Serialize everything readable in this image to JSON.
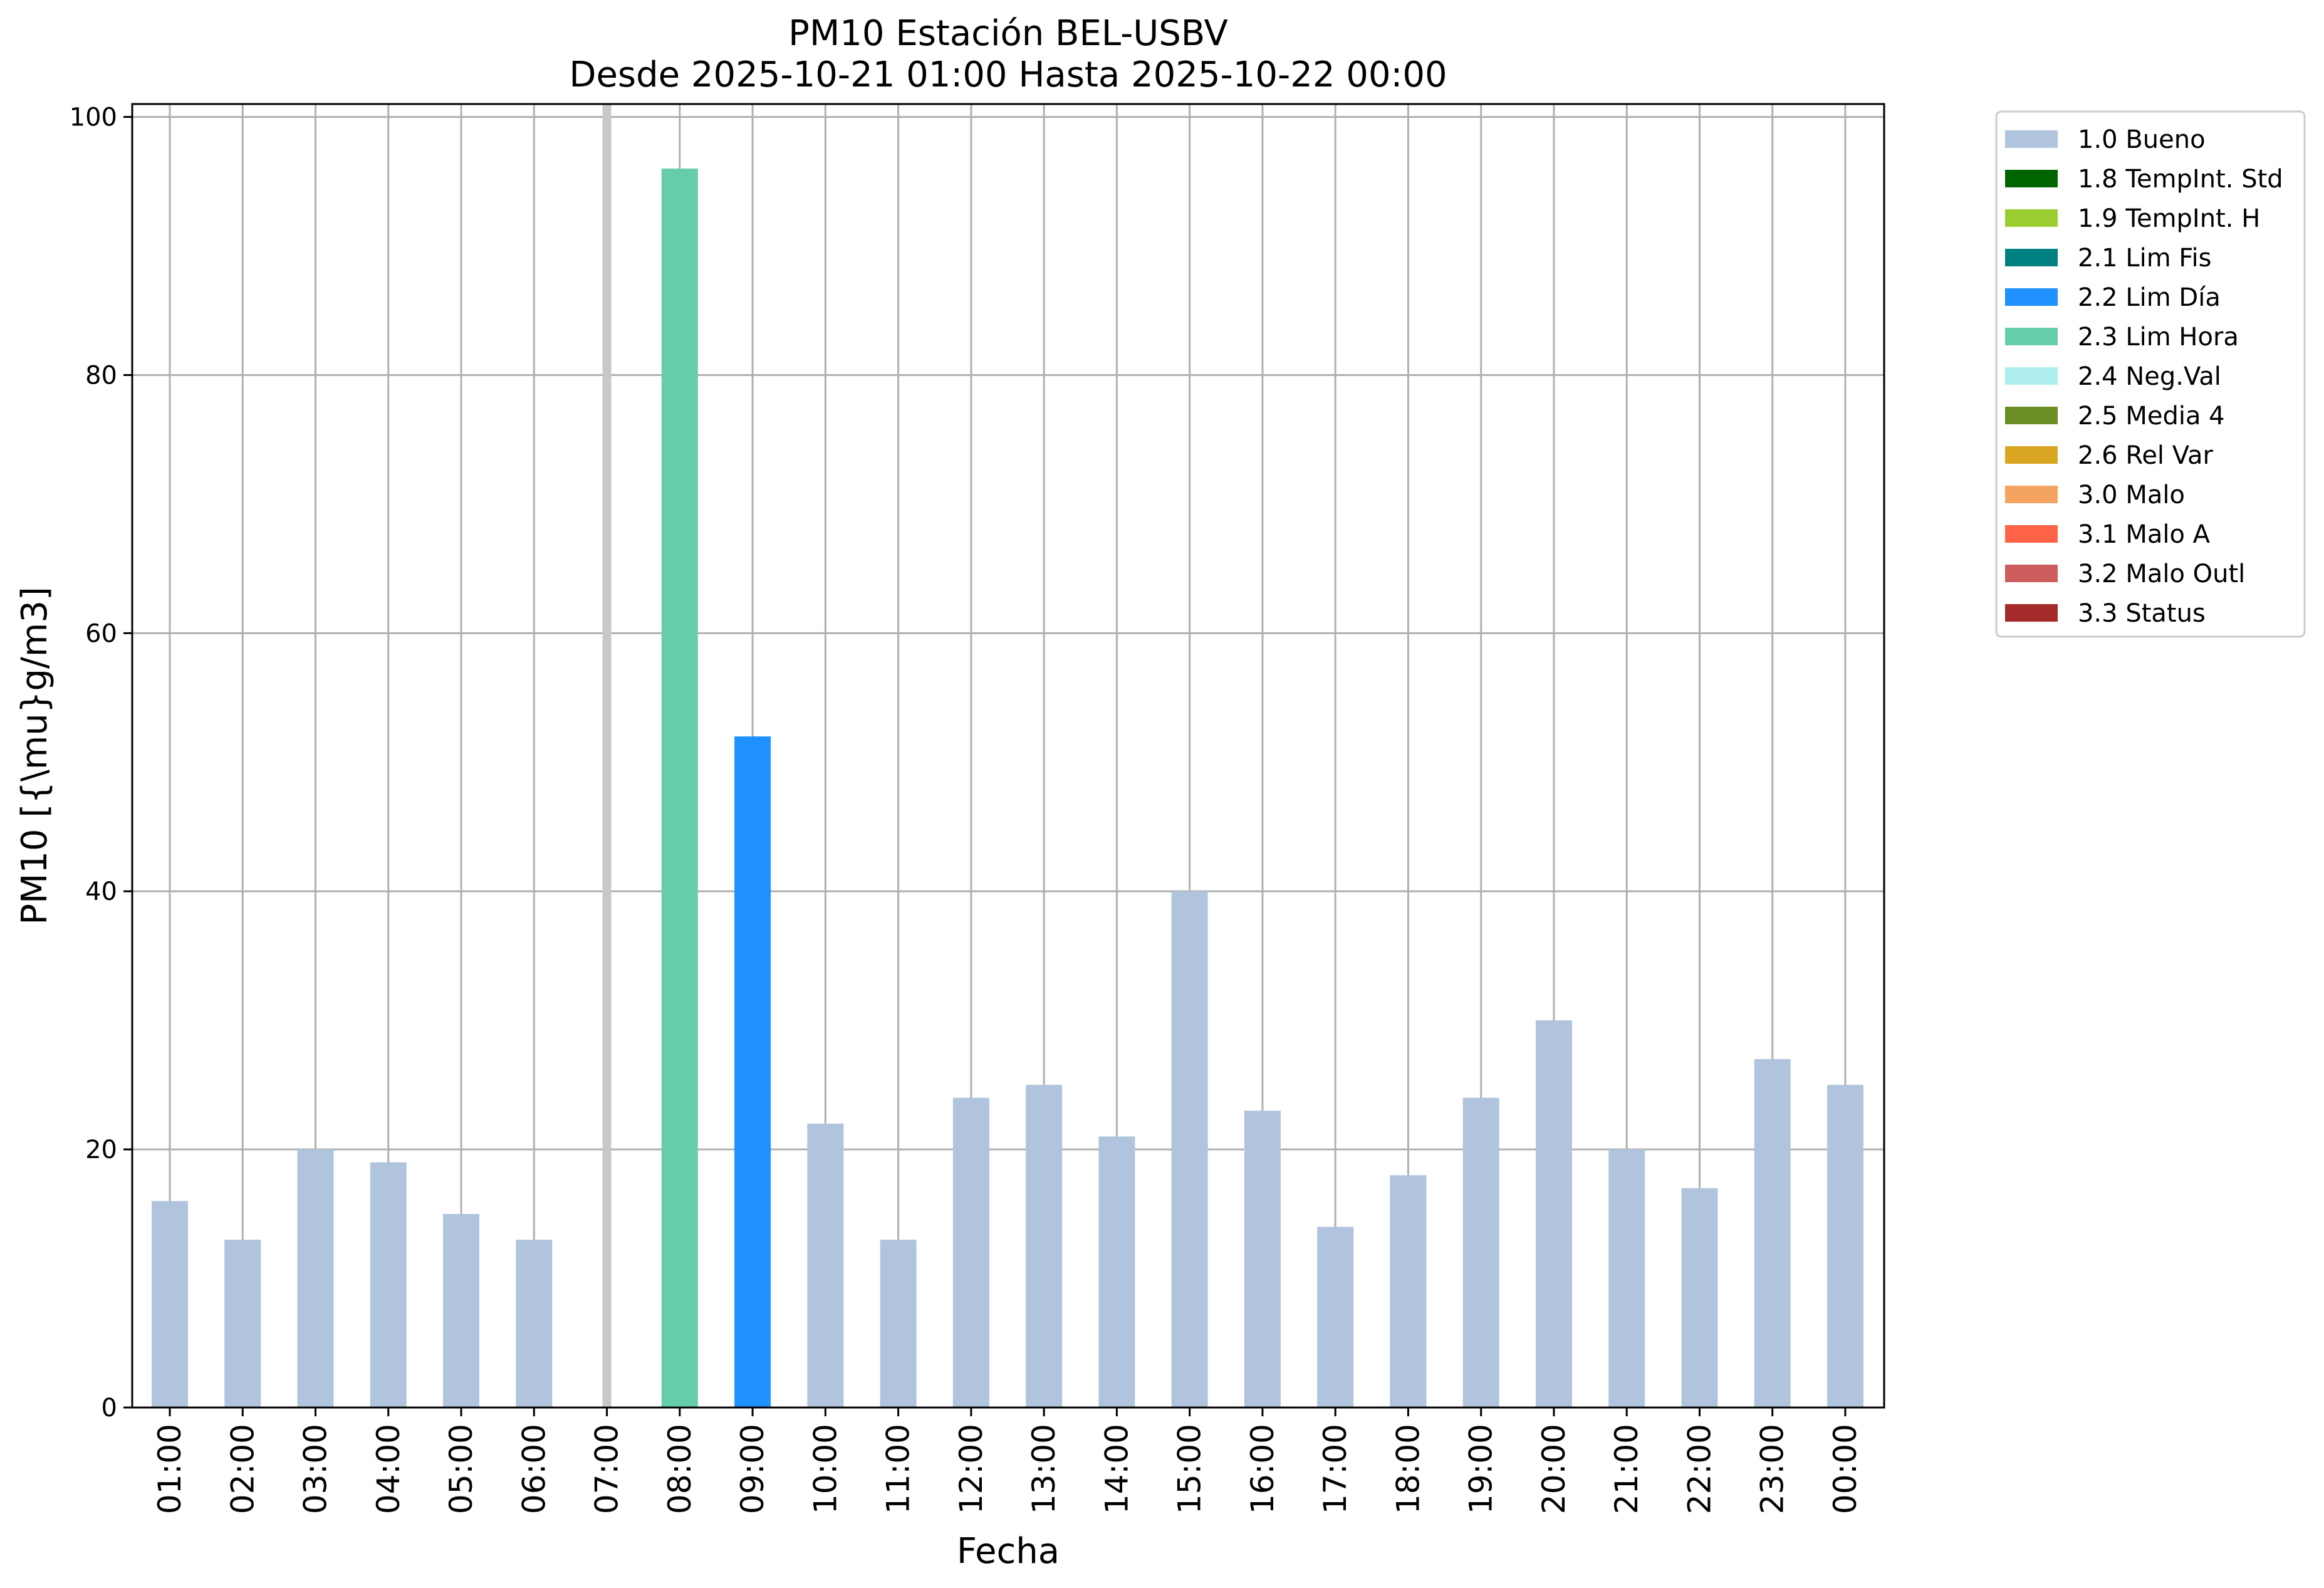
{
  "chart_data": {
    "type": "bar",
    "title": "PM10 Estación BEL-USBV",
    "subtitle": "Desde 2025-10-21 01:00 Hasta 2025-10-22 00:00",
    "xlabel": "Fecha",
    "ylabel": "PM10 [{\\mu}g/m3]",
    "ylim": [
      0,
      101
    ],
    "yticks": [
      0,
      20,
      40,
      60,
      80,
      100
    ],
    "grid": true,
    "legend_position": "outside-right",
    "categories": [
      "01:00",
      "02:00",
      "03:00",
      "04:00",
      "05:00",
      "06:00",
      "07:00",
      "08:00",
      "09:00",
      "10:00",
      "11:00",
      "12:00",
      "13:00",
      "14:00",
      "15:00",
      "16:00",
      "17:00",
      "18:00",
      "19:00",
      "20:00",
      "21:00",
      "22:00",
      "23:00",
      "00:00"
    ],
    "values": [
      16,
      13,
      20,
      19,
      15,
      13,
      null,
      96,
      52,
      22,
      13,
      24,
      25,
      21,
      40,
      23,
      14,
      18,
      24,
      30,
      20,
      17,
      27,
      25
    ],
    "flags": [
      "1.0",
      "1.0",
      "1.0",
      "1.0",
      "1.0",
      "1.0",
      null,
      "2.3",
      "2.2",
      "1.0",
      "1.0",
      "1.0",
      "1.0",
      "1.0",
      "1.0",
      "1.0",
      "1.0",
      "1.0",
      "1.0",
      "1.0",
      "1.0",
      "1.0",
      "1.0",
      "1.0"
    ],
    "missing_marker": {
      "category": "07:00",
      "color": "#c8c8c8"
    },
    "legend": [
      {
        "code": "1.0",
        "label": "1.0 Bueno",
        "color": "#b0c4de"
      },
      {
        "code": "1.8",
        "label": "1.8 TempInt. Std",
        "color": "#006400"
      },
      {
        "code": "1.9",
        "label": "1.9 TempInt. H",
        "color": "#9acd32"
      },
      {
        "code": "2.1",
        "label": "2.1 Lim Fis",
        "color": "#008080"
      },
      {
        "code": "2.2",
        "label": "2.2 Lim Día",
        "color": "#1e90ff"
      },
      {
        "code": "2.3",
        "label": "2.3 Lim Hora",
        "color": "#66cdaa"
      },
      {
        "code": "2.4",
        "label": "2.4 Neg.Val",
        "color": "#afeeee"
      },
      {
        "code": "2.5",
        "label": "2.5 Media 4",
        "color": "#6b8e23"
      },
      {
        "code": "2.6",
        "label": "2.6 Rel Var",
        "color": "#daa520"
      },
      {
        "code": "3.0",
        "label": "3.0 Malo",
        "color": "#f4a460"
      },
      {
        "code": "3.1",
        "label": "3.1 Malo A",
        "color": "#ff6347"
      },
      {
        "code": "3.2",
        "label": "3.2 Malo Outl",
        "color": "#cd5c5c"
      },
      {
        "code": "3.3",
        "label": "3.3 Status",
        "color": "#a52a2a"
      }
    ]
  }
}
